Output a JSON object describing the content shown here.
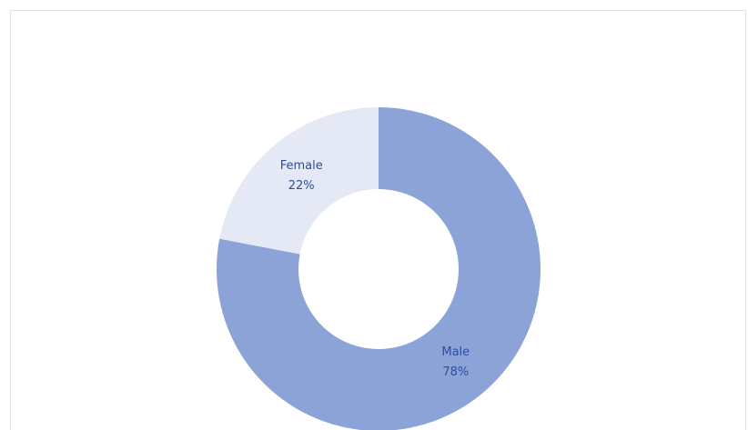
{
  "chart_data": {
    "type": "donut",
    "categories": [
      "Male",
      "Female"
    ],
    "values": [
      78,
      22
    ],
    "value_labels": [
      "78%",
      "22%"
    ],
    "colors": [
      "#8ca3d8",
      "#e4e9f5"
    ]
  }
}
